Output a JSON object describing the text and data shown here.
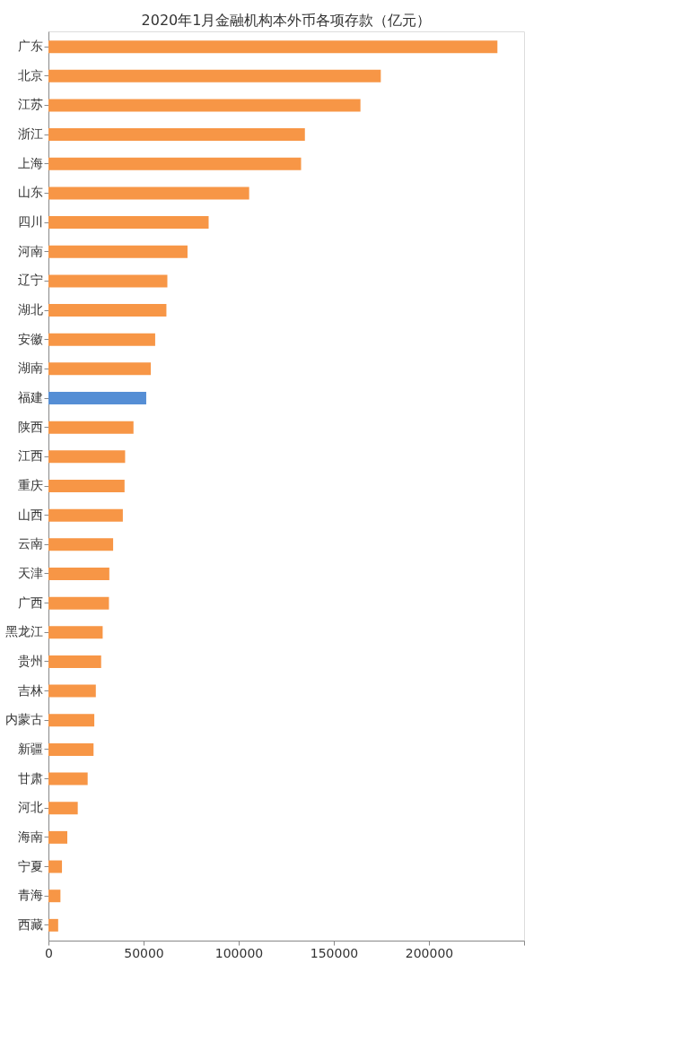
{
  "chart_data": {
    "type": "bar",
    "orientation": "horizontal",
    "title": "2020年1月金融机构本外币各项存款（亿元）",
    "categories": [
      "广东",
      "北京",
      "江苏",
      "浙江",
      "上海",
      "山东",
      "四川",
      "河南",
      "辽宁",
      "湖北",
      "安徽",
      "湖南",
      "福建",
      "陕西",
      "江西",
      "重庆",
      "山西",
      "云南",
      "天津",
      "广西",
      "黑龙江",
      "贵州",
      "吉林",
      "内蒙古",
      "新疆",
      "甘肃",
      "河北",
      "海南",
      "宁夏",
      "青海",
      "西藏"
    ],
    "values": [
      236000,
      174700,
      164000,
      134800,
      132800,
      105500,
      84200,
      73100,
      62500,
      62000,
      56100,
      53800,
      51400,
      44700,
      40300,
      40000,
      39100,
      34000,
      32000,
      31800,
      28500,
      27700,
      24900,
      24100,
      23700,
      20600,
      15400,
      9900,
      7100,
      6300,
      5100
    ],
    "colors": [
      "#f79646",
      "#f79646",
      "#f79646",
      "#f79646",
      "#f79646",
      "#f79646",
      "#f79646",
      "#f79646",
      "#f79646",
      "#f79646",
      "#f79646",
      "#f79646",
      "#558ed5",
      "#f79646",
      "#f79646",
      "#f79646",
      "#f79646",
      "#f79646",
      "#f79646",
      "#f79646",
      "#f79646",
      "#f79646",
      "#f79646",
      "#f79646",
      "#f79646",
      "#f79646",
      "#f79646",
      "#f79646",
      "#f79646",
      "#f79646",
      "#f79646"
    ],
    "xlim": [
      0,
      250000
    ],
    "xticks": [
      0,
      50000,
      100000,
      150000,
      200000,
      {
        "value": 250000,
        "label": null
      }
    ],
    "grid": false,
    "legend": false
  }
}
